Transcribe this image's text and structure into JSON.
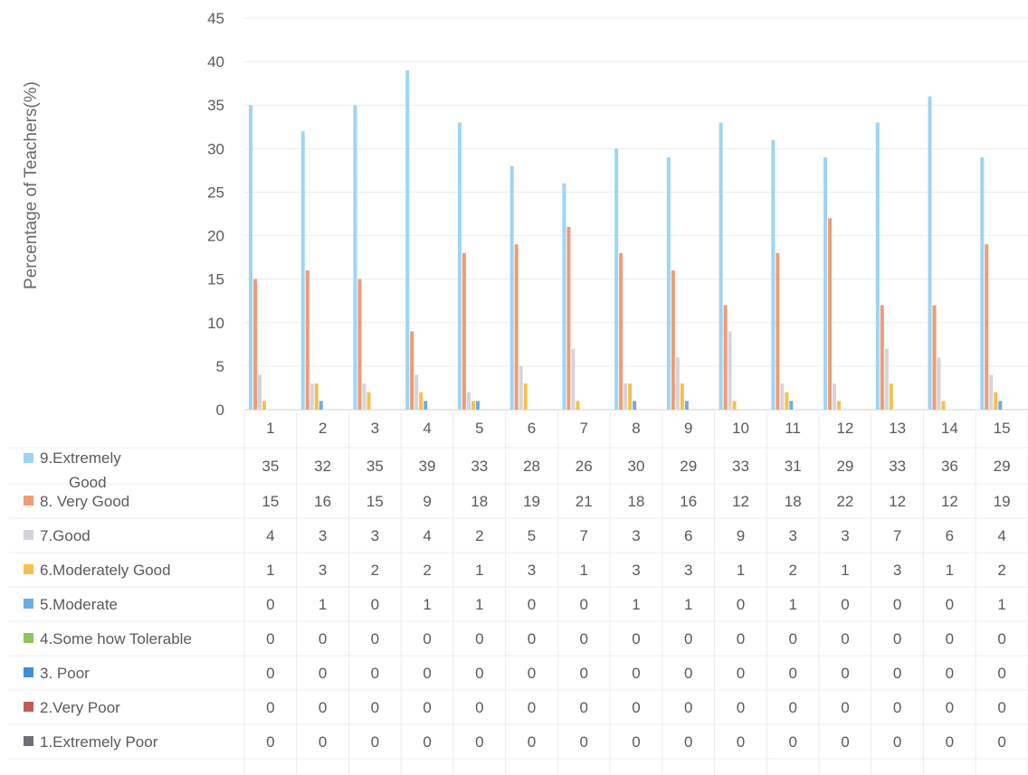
{
  "chart_data": {
    "type": "bar",
    "title": "",
    "xlabel": "",
    "ylabel": "Percentage of Teachers(%)",
    "ylim": [
      0,
      45
    ],
    "yticks": [
      "0",
      "5",
      "10",
      "15",
      "20",
      "25",
      "30",
      "35",
      "40",
      "45"
    ],
    "grid": true,
    "legend": "data-table-below",
    "categories": [
      "1",
      "2",
      "3",
      "4",
      "5",
      "6",
      "7",
      "8",
      "9",
      "10",
      "11",
      "12",
      "13",
      "14",
      "15"
    ],
    "series": [
      {
        "name": "9.Extremely Good",
        "name_lines": [
          "9.Extremely",
          "Good"
        ],
        "color": "#9dd5f5",
        "values": [
          35,
          32,
          35,
          39,
          33,
          28,
          26,
          30,
          29,
          33,
          31,
          29,
          33,
          36,
          29
        ]
      },
      {
        "name": "8. Very Good",
        "color": "#f29a72",
        "values": [
          15,
          16,
          15,
          9,
          18,
          19,
          21,
          18,
          16,
          12,
          18,
          22,
          12,
          12,
          19
        ]
      },
      {
        "name": "7.Good",
        "color": "#d4d4dc",
        "values": [
          4,
          3,
          3,
          4,
          2,
          5,
          7,
          3,
          6,
          9,
          3,
          3,
          7,
          6,
          4
        ]
      },
      {
        "name": "6.Moderately Good",
        "color": "#f7c04a",
        "values": [
          1,
          3,
          2,
          2,
          1,
          3,
          1,
          3,
          3,
          1,
          2,
          1,
          3,
          1,
          2
        ]
      },
      {
        "name": "5.Moderate",
        "color": "#6aaee6",
        "values": [
          0,
          1,
          0,
          1,
          1,
          0,
          0,
          1,
          1,
          0,
          1,
          0,
          0,
          0,
          1
        ]
      },
      {
        "name": "4.Some how Tolerable",
        "color": "#8fc45a",
        "values": [
          0,
          0,
          0,
          0,
          0,
          0,
          0,
          0,
          0,
          0,
          0,
          0,
          0,
          0,
          0
        ]
      },
      {
        "name": "3. Poor",
        "color": "#3f8fd6",
        "values": [
          0,
          0,
          0,
          0,
          0,
          0,
          0,
          0,
          0,
          0,
          0,
          0,
          0,
          0,
          0
        ]
      },
      {
        "name": "2.Very Poor",
        "color": "#c25a5a",
        "values": [
          0,
          0,
          0,
          0,
          0,
          0,
          0,
          0,
          0,
          0,
          0,
          0,
          0,
          0,
          0
        ]
      },
      {
        "name": "1.Extremely Poor",
        "color": "#6e6e78",
        "values": [
          0,
          0,
          0,
          0,
          0,
          0,
          0,
          0,
          0,
          0,
          0,
          0,
          0,
          0,
          0
        ]
      }
    ]
  }
}
